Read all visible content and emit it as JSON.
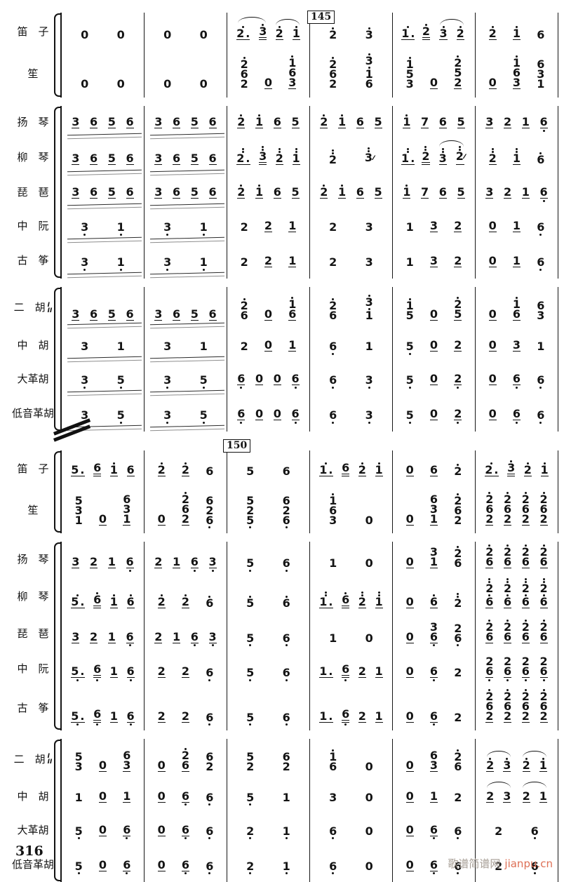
{
  "page": {
    "number": "316",
    "watermark_site": "歌谱简谱网",
    "watermark_url": "jianpu.cn"
  },
  "rehearsal_marks": [
    {
      "label": "145"
    },
    {
      "label": "150"
    }
  ],
  "systems": [
    {
      "groups": [
        {
          "rows": [
            {
              "label": "笛　子",
              "measures": [
                "0 0",
                "0 0",
                "( 2'._ 3'= ) ( 2'_ 1'_ )",
                "2' 3'",
                "1'._ 2'= ( 3'_ 2'_ )",
                "2'_ 1'_ 6"
              ]
            },
            {
              "label": "笙",
              "measures": [
                "0 0",
                "0 0",
                "2'/6/2 0_ 1'/6/3_",
                "2'/6/2 3'/1'/6",
                "1'/5/3 0_ 2'/5/2_",
                "0_ 1'/6/3_ 6/3/1"
              ]
            }
          ]
        },
        {
          "rows": [
            {
              "label": "扬　琴",
              "measures": [
                {
                  "n": "3_ 6_ 5_ 6_",
                  "roll": true
                },
                {
                  "n": "3_ 6_ 5_ 6_",
                  "roll": true
                },
                "2'_ 1'_ 6_ 5_",
                "2'_ 1'_ 6_ 5_",
                "1'_ 7_ 6_ 5_",
                "3_ 2_ 1_ 6,_"
              ]
            },
            {
              "label": "柳　琴",
              "measures": [
                {
                  "n": "3_ 6_ 5_ 6_",
                  "roll": true
                },
                {
                  "n": "3_ 6_ 5_ 6_",
                  "roll": true
                },
                "2''._ 3''= 2''_ 1''_",
                "2'' 3''~",
                "1''._ 2''= ( 3''_ 2''~_ )",
                "2''_ 1''_ 6'"
              ]
            },
            {
              "label": "琵　琶",
              "measures": [
                {
                  "n": "3_ 6_ 5_ 6_",
                  "roll": true
                },
                {
                  "n": "3_ 6_ 5_ 6_",
                  "roll": true
                },
                "2'_ 1'_ 6_ 5_",
                "2'_ 1'_ 6_ 5_",
                "1'_ 7_ 6_ 5_",
                "3_ 2_ 1_ 6,_"
              ]
            },
            {
              "label": "中　阮",
              "measures": [
                {
                  "n": "3, 1,",
                  "roll": true
                },
                {
                  "n": "3, 1,",
                  "roll": true
                },
                "2 2_ 1_",
                "2 3",
                "1 3_ 2_",
                "0_ 1_ 6,"
              ]
            },
            {
              "label": "古　筝",
              "measures": [
                {
                  "n": "3, 1,",
                  "roll": true
                },
                {
                  "n": "3, 1,",
                  "roll": true
                },
                "2 2_ 1_",
                "2 3",
                "1 3_ 2_",
                "0_ 1_ 6,"
              ]
            }
          ]
        },
        {
          "rows": [
            {
              "label": "二　胡",
              "divisi": [
                "I",
                "II"
              ],
              "measures": [
                {
                  "n": "3_ 6_ 5_ 6_",
                  "roll": true
                },
                {
                  "n": "3_ 6_ 5_ 6_",
                  "roll": true
                },
                "2'/6 0_ 1'/6_",
                "2'/6 3'/1'",
                "1'/5 0_ 2'/5_",
                "0_ 1'/6_ 6/3"
              ]
            },
            {
              "label": "中　胡",
              "measures": [
                {
                  "n": "3 1",
                  "roll": true
                },
                {
                  "n": "3 1",
                  "roll": true
                },
                "2 0_ 1_",
                "6, 1",
                "5, 0_ 2_",
                "0_ 3_ 1"
              ]
            },
            {
              "label": "大革胡",
              "measures": [
                {
                  "n": "3, 5,",
                  "roll": true
                },
                {
                  "n": "3, 5,",
                  "roll": true
                },
                "6,_ 0_ 0_ 6,_",
                "6, 3,",
                "5, 0_ 2,_",
                "0_ 6,_ 6,"
              ]
            },
            {
              "label": "低音革胡",
              "measures": [
                {
                  "n": "3, 5,",
                  "roll": true
                },
                {
                  "n": "3, 5,",
                  "roll": true
                },
                "6,_ 0_ 0_ 6,_",
                "6, 3,",
                "5, 0_ 2,_",
                "0_ 6,_ 6,"
              ]
            }
          ]
        }
      ]
    },
    {
      "groups": [
        {
          "rows": [
            {
              "label": "笛　子",
              "measures": [
                "5._ 6= 1'_ 6_",
                "2'_ 2'_ 6",
                "5 6",
                "1'._ 6= 2'_ 1'_",
                "0_ 6_ 2'",
                "2'._ 3'= 2'_ 1'_"
              ]
            },
            {
              "label": "笙",
              "measures": [
                "5/3/1 0_ 6/3/1_",
                "0_ 2'/6/2_ 6/2/6,",
                "5/2/5, 6/2/6,",
                "1'/6/3 0",
                "0_ 6/3/1_ 2'/6/2",
                "2'/6/2_ 2'/6/2_ 2'/6/2_ 2'/6/2_"
              ]
            }
          ]
        },
        {
          "rows": [
            {
              "label": "扬　琴",
              "measures": [
                "3_ 2_ 1_ 6,_",
                "2_ 1_ 6,_ 3,_",
                "5, 6,",
                "1 0",
                "0_ 3/1_ 2'/6",
                "2'/6_ 2'/6_ 2'/6_ 2'/6_"
              ]
            },
            {
              "label": "柳　琴",
              "measures": [
                "5'._ 6'= 1'_ 6'_",
                "2'_ 2'_ 6'",
                "5' 6'",
                "1''._ 6'= 2''_ 1''_",
                "0_ 6'_ 2''",
                "2''/6'_ 2''/6'_ 2''/6'_ 2''/6'_"
              ]
            },
            {
              "label": "琵　琶",
              "measures": [
                "3_ 2_ 1_ 6,_",
                "2_ 1_ 6,_ 3,_",
                "5, 6,",
                "1 0",
                "0_ 3/6,_ 2/6,",
                "2'/6_ 2'/6_ 2'/6_ 2'/6_"
              ]
            },
            {
              "label": "中　阮",
              "measures": [
                "5,._ 6,= 1_ 6,_",
                "2_ 2_ 6,",
                "5, 6,",
                "1._ 6,= 2_ 1_",
                "0_ 6,_ 2",
                "2/6,_ 2/6,_ 2/6,_ 2/6,_"
              ]
            },
            {
              "label": "古　筝",
              "measures": [
                "5,._ 6,= 1_ 6,_",
                "2_ 2_ 6,",
                "5, 6,",
                "1._ 6,= 2_ 1_",
                "0_ 6,_ 2",
                "2'/6/2_ 2'/6/2_ 2'/6/2_ 2'/6/2_"
              ]
            }
          ]
        },
        {
          "rows": [
            {
              "label": "二　胡",
              "divisi": [
                "I",
                "II"
              ],
              "measures": [
                "5/3 0_ 6/3_",
                "0_ 2'/6_ 6/2",
                "5/2 6/2",
                "1'/6 0",
                "0_ 6/3_ 2'/6",
                "( 2'_ 3'_ ) ( 2'_ 1'_ )"
              ]
            },
            {
              "label": "中　胡",
              "measures": [
                "1 0_ 1_",
                "0_ 6,_ 6,",
                "5, 1",
                "3 0",
                "0_ 1_ 2",
                "( 2_ 3_ ) ( 2_ 1_ )"
              ]
            },
            {
              "label": "大革胡",
              "measures": [
                "5, 0_ 6,_",
                "0_ 6,_ 6,",
                "2, 1,",
                "6, 0",
                "0_ 6,_ 6,",
                "2 6,"
              ]
            },
            {
              "label": "低音革胡",
              "measures": [
                "5, 0_ 6,_",
                "0_ 6,_ 6,",
                "2, 1,",
                "6, 0",
                "0_ 6,_ 6,",
                "2 6,"
              ]
            }
          ]
        }
      ]
    }
  ]
}
